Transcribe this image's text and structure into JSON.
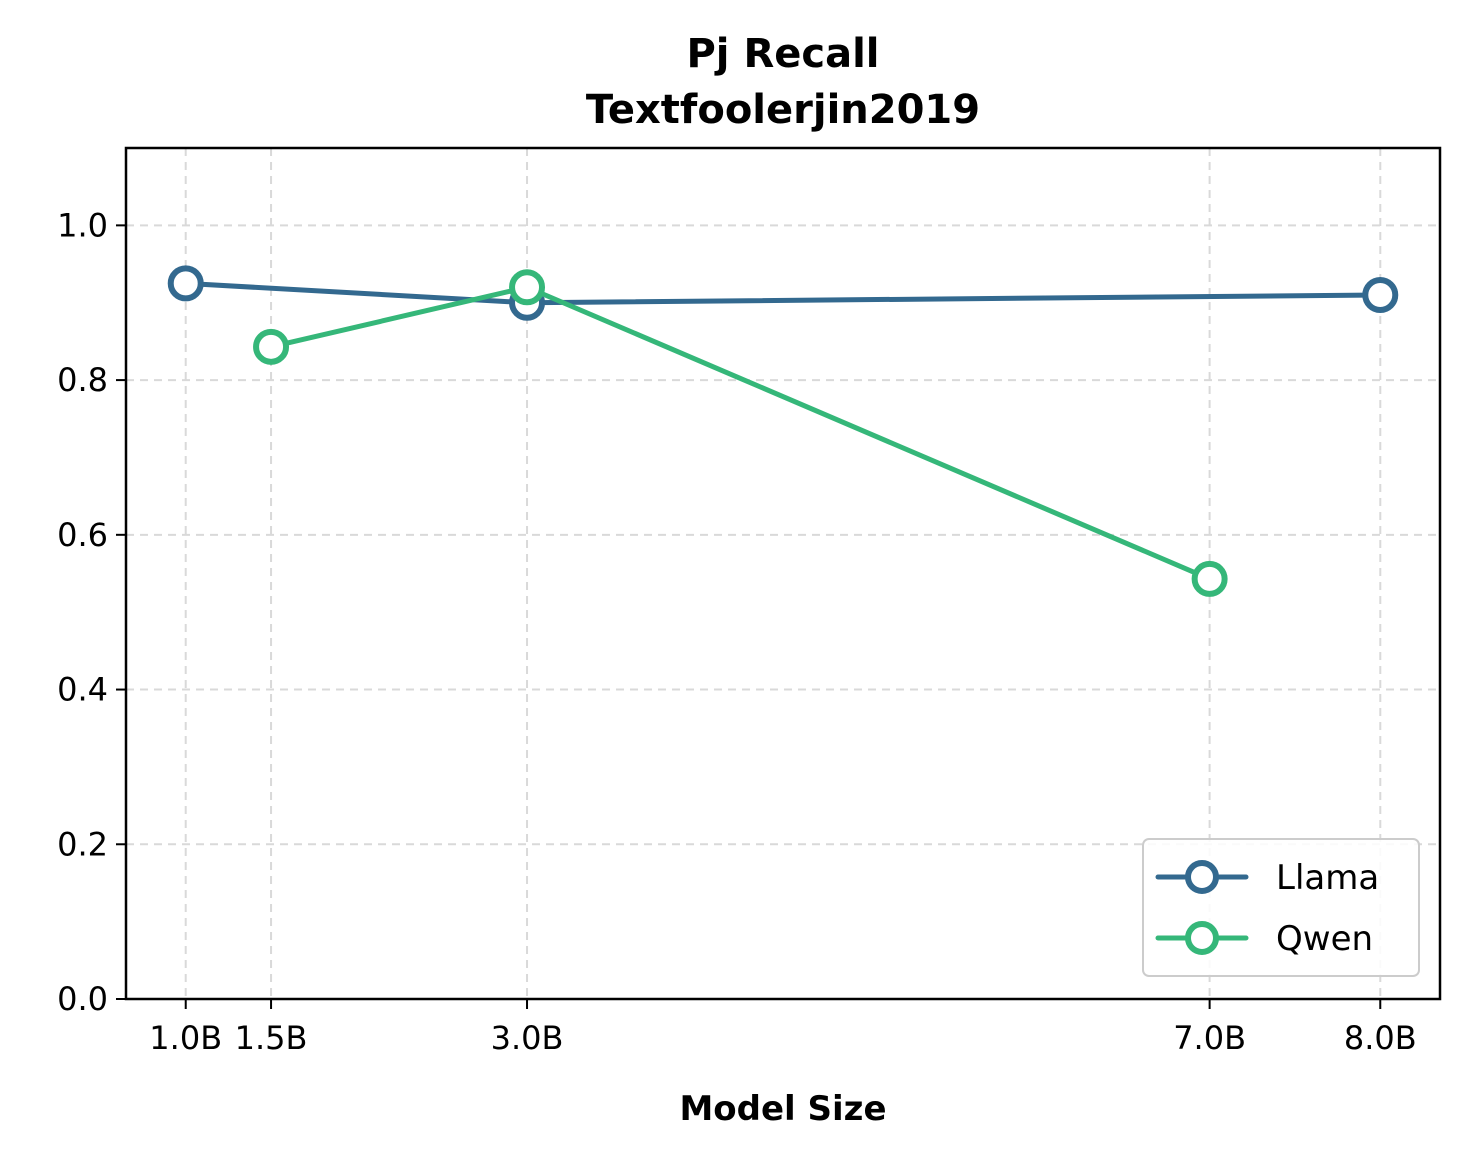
{
  "chart_data": {
    "type": "line",
    "title_line1": "Pj Recall",
    "title_line2": "Textfoolerjin2019",
    "xlabel": "Model Size",
    "ylabel": "",
    "x": [
      1.0,
      1.5,
      3.0,
      7.0,
      8.0
    ],
    "x_tick_labels": [
      "1.0B",
      "1.5B",
      "3.0B",
      "7.0B",
      "8.0B"
    ],
    "xlim": [
      0.65,
      8.35
    ],
    "ylim": [
      0.0,
      1.1
    ],
    "y_ticks": [
      0.0,
      0.2,
      0.4,
      0.6,
      0.8,
      1.0
    ],
    "y_tick_labels": [
      "0.0",
      "0.2",
      "0.4",
      "0.6",
      "0.8",
      "1.0"
    ],
    "grid": true,
    "legend_position": "lower-right",
    "series": [
      {
        "name": "Llama",
        "color": "#33698f",
        "x": [
          1.0,
          3.0,
          8.0
        ],
        "y": [
          0.925,
          0.9,
          0.91
        ]
      },
      {
        "name": "Qwen",
        "color": "#35b779",
        "x": [
          1.5,
          3.0,
          7.0
        ],
        "y": [
          0.843,
          0.92,
          0.543
        ]
      }
    ]
  }
}
